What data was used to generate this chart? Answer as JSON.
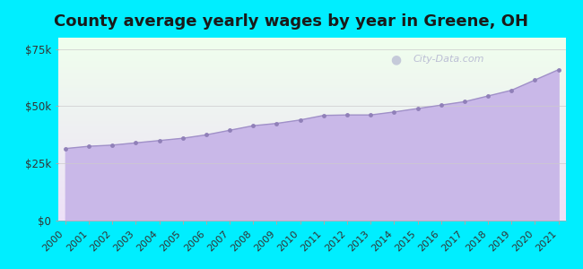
{
  "title": "County average yearly wages by year in Greene, OH",
  "years": [
    2000,
    2001,
    2002,
    2003,
    2004,
    2005,
    2006,
    2007,
    2008,
    2009,
    2010,
    2011,
    2012,
    2013,
    2014,
    2015,
    2016,
    2017,
    2018,
    2019,
    2020,
    2021
  ],
  "wages": [
    31500,
    32500,
    33000,
    34000,
    35000,
    36000,
    37500,
    39500,
    41500,
    42500,
    44000,
    46000,
    46200,
    46200,
    47500,
    49000,
    50500,
    52000,
    54500,
    57000,
    61500,
    66000
  ],
  "ylim": [
    0,
    80000
  ],
  "yticks": [
    0,
    25000,
    50000,
    75000
  ],
  "ytick_labels": [
    "$0",
    "$25k",
    "$50k",
    "$75k"
  ],
  "fill_color": "#c9b8e8",
  "fill_alpha": 1.0,
  "line_color": "#a090c8",
  "marker_color": "#9080b8",
  "bg_outer": "#00eeff",
  "bg_gradient_top": "#efffee",
  "bg_gradient_bottom": "#f0e8ff",
  "watermark": "City-Data.com",
  "title_fontsize": 13,
  "tick_fontsize": 8.5,
  "figsize": [
    6.5,
    3.0
  ],
  "dpi": 100
}
